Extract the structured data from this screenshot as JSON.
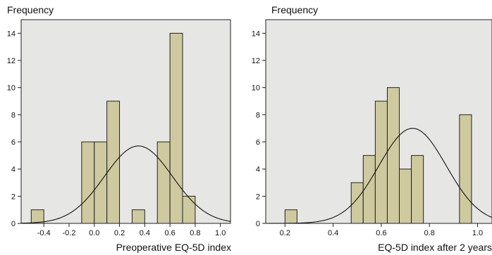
{
  "chart_data": [
    {
      "type": "bar",
      "subtype": "histogram",
      "ylabel": "Frequency",
      "xlabel": "Preoperative EQ-5D index",
      "xlim": [
        -0.58,
        1.08
      ],
      "ylim": [
        0,
        15
      ],
      "x_ticks": [
        -0.4,
        -0.2,
        0.0,
        0.2,
        0.4,
        0.6,
        0.8,
        1.0
      ],
      "x_tick_labels": [
        "-0.4",
        "-0.2",
        "0.0",
        "0.2",
        "0.4",
        "0.6",
        "0.8",
        "1.0"
      ],
      "y_ticks": [
        0,
        2,
        4,
        6,
        8,
        10,
        12,
        14
      ],
      "y_tick_labels": [
        "0",
        "2",
        "4",
        "6",
        "8",
        "10",
        "12",
        "14"
      ],
      "bin_width": 0.1,
      "bins": [
        {
          "x0": -0.5,
          "x1": -0.4,
          "count": 1
        },
        {
          "x0": -0.1,
          "x1": 0.0,
          "count": 6
        },
        {
          "x0": 0.0,
          "x1": 0.1,
          "count": 6
        },
        {
          "x0": 0.1,
          "x1": 0.2,
          "count": 9
        },
        {
          "x0": 0.3,
          "x1": 0.4,
          "count": 1
        },
        {
          "x0": 0.5,
          "x1": 0.6,
          "count": 6
        },
        {
          "x0": 0.6,
          "x1": 0.7,
          "count": 14
        },
        {
          "x0": 0.7,
          "x1": 0.8,
          "count": 2
        }
      ],
      "normal_curve": {
        "mean": 0.35,
        "sd": 0.27,
        "peak": 5.7
      },
      "grid": false,
      "colors": {
        "bar": "#cfc9a0",
        "background": "#e6e6e4"
      }
    },
    {
      "type": "bar",
      "subtype": "histogram",
      "ylabel": "Frequency",
      "xlabel": "EQ-5D index after 2 years",
      "xlim": [
        0.12,
        1.06
      ],
      "ylim": [
        0,
        15
      ],
      "x_ticks": [
        0.2,
        0.4,
        0.6,
        0.8,
        1.0
      ],
      "x_tick_labels": [
        "0.2",
        "0.4",
        "0.6",
        "0.8",
        "1.0"
      ],
      "y_ticks": [
        0,
        2,
        4,
        6,
        8,
        10,
        12,
        14
      ],
      "y_tick_labels": [
        "0",
        "2",
        "4",
        "6",
        "8",
        "10",
        "12",
        "14"
      ],
      "bin_width": 0.05,
      "bins": [
        {
          "x0": 0.2,
          "x1": 0.25,
          "count": 1
        },
        {
          "x0": 0.475,
          "x1": 0.525,
          "count": 3
        },
        {
          "x0": 0.525,
          "x1": 0.575,
          "count": 5
        },
        {
          "x0": 0.575,
          "x1": 0.625,
          "count": 9
        },
        {
          "x0": 0.625,
          "x1": 0.675,
          "count": 10
        },
        {
          "x0": 0.675,
          "x1": 0.725,
          "count": 4
        },
        {
          "x0": 0.725,
          "x1": 0.775,
          "count": 5
        },
        {
          "x0": 0.925,
          "x1": 0.975,
          "count": 8
        }
      ],
      "normal_curve": {
        "mean": 0.73,
        "sd": 0.14,
        "peak": 7.0
      },
      "grid": false,
      "colors": {
        "bar": "#cfc9a0",
        "background": "#e6e6e4"
      }
    }
  ]
}
